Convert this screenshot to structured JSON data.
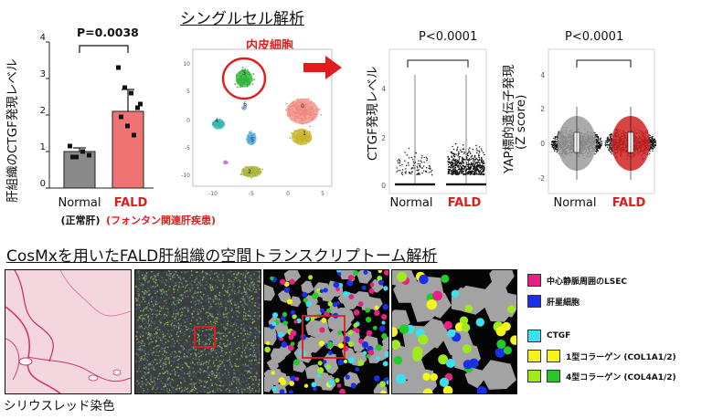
{
  "bar_chart": {
    "ylabel": "肝組織のCTGF発現レベル",
    "pvalue": "P=0.0038",
    "yticks": [
      "0",
      "1",
      "2",
      "3",
      "4"
    ],
    "groups": [
      {
        "name": "Normal",
        "sub": "(正常肝)"
      },
      {
        "name": "FALD",
        "sub": "(フォンタン関連肝疾患)"
      }
    ]
  },
  "single_cell": {
    "title": "シングルセル解析",
    "cluster_label": "内皮細胞",
    "cluster_numbers": [
      "3",
      "4",
      "6",
      "0",
      "1",
      "5",
      "2"
    ],
    "x_ticks": [
      "-10",
      "-5",
      "0",
      "5"
    ],
    "y_ticks": [
      "10",
      "5",
      "0",
      "-5",
      "-10"
    ]
  },
  "ctgf_violin": {
    "ylabel": "CTGF発現レベル",
    "pvalue": "P<0.0001",
    "yticks": [
      "4",
      "2",
      "0"
    ],
    "groups": [
      "Normal",
      "FALD"
    ]
  },
  "yap_violin": {
    "ylabel": "YAP標的遺伝子発現",
    "ylabel2": "(Z score)",
    "pvalue": "P<0.0001",
    "yticks": [
      "4",
      "2",
      "0",
      "-2"
    ],
    "groups": [
      "Normal",
      "FALD"
    ]
  },
  "cosmx": {
    "title": "CosMxを用いたFALD肝組織の空間トランスクリプトーム解析",
    "stain_caption": "シリウスレッド染色",
    "legend": [
      {
        "label": "中心静脈周囲のLSEC",
        "colors": [
          "#ea1f85"
        ]
      },
      {
        "label": "肝星細胞",
        "colors": [
          "#1a2fe8"
        ]
      },
      {
        "label": "CTGF",
        "colors": [
          "#39e0ef"
        ]
      },
      {
        "label": "1型コラーゲン (COL1A1/2)",
        "colors": [
          "#f5f21c",
          "#f5f21c"
        ]
      },
      {
        "label": "4型コラーゲン (COL4A1/2)",
        "colors": [
          "#9eea1c",
          "#28c828"
        ]
      }
    ]
  },
  "chart_data": [
    {
      "type": "bar",
      "categories": [
        "Normal",
        "FALD"
      ],
      "values": [
        1.0,
        2.1
      ],
      "errors": [
        0.1,
        0.6
      ],
      "points": [
        [
          1.15,
          0.85,
          1.0,
          0.9,
          0.85
        ],
        [
          3.3,
          2.75,
          2.6,
          2.2,
          1.95,
          1.7,
          1.45,
          2.3
        ]
      ],
      "colors": [
        "#8a8a8a",
        "#f07373"
      ],
      "ylim": [
        0,
        4
      ],
      "ylabel": "肝組織のCTGF発現レベル"
    },
    {
      "type": "scatter",
      "groups": [
        "Normal",
        "FALD"
      ],
      "ylim": [
        0,
        4.5
      ],
      "ylabel": "CTGF発現レベル"
    },
    {
      "type": "scatter",
      "groups": [
        "Normal",
        "FALD"
      ],
      "ylim": [
        -2.3,
        4.3
      ],
      "ylabel": "YAP標的遺伝子発現 (Z score)"
    }
  ]
}
